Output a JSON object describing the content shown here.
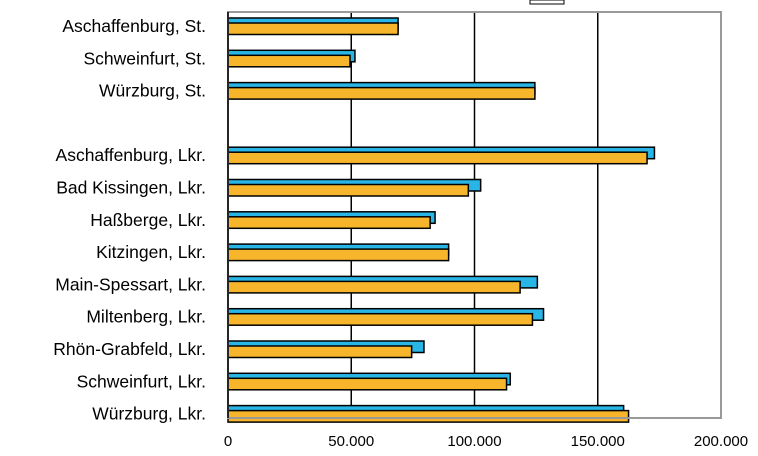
{
  "chart_data": {
    "type": "bar",
    "orientation": "horizontal",
    "categories": [
      "Aschaffenburg, St.",
      "Schweinfurt, St.",
      "Würzburg, St.",
      "",
      "Aschaffenburg, Lkr.",
      "Bad Kissingen, Lkr.",
      "Haßberge, Lkr.",
      "Kitzingen, Lkr.",
      "Main-Spessart, Lkr.",
      "Miltenberg, Lkr.",
      "Rhön-Grabfeld, Lkr.",
      "Schweinfurt, Lkr.",
      "Würzburg, Lkr."
    ],
    "series": [
      {
        "color": "#29b6e6",
        "values": [
          69000,
          51500,
          124500,
          null,
          173000,
          102500,
          84000,
          89500,
          125500,
          128000,
          79500,
          114500,
          160500
        ]
      },
      {
        "color": "#f7b52b",
        "values": [
          69000,
          49500,
          124500,
          null,
          170000,
          97500,
          82000,
          89500,
          118500,
          123500,
          74500,
          113000,
          162500
        ]
      }
    ],
    "xlim": [
      0,
      200000
    ],
    "xticks": [
      "0",
      "50.000",
      "100.000",
      "150.000",
      "200.000"
    ],
    "xtick_values": [
      0,
      50000,
      100000,
      150000,
      200000
    ],
    "grid": "vertical"
  }
}
